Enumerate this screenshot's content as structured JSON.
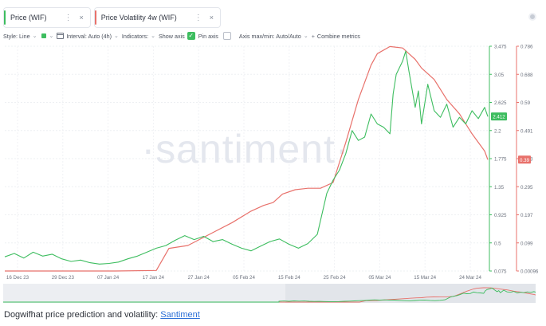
{
  "tabs": [
    {
      "label": "Price (WIF)",
      "accent": "#3dbd5f",
      "dots": "⋮",
      "close": "×"
    },
    {
      "label": "Price Volatility 4w (WIF)",
      "accent": "#e8716b",
      "dots": "⋮",
      "close": "×"
    }
  ],
  "toolbar": {
    "style": "Style: Line",
    "interval": "Interval: Auto (4h)",
    "indicators": "Indicators:",
    "show_axis": "Show axis",
    "pin_axis": "Pin axis",
    "axis_maxmin": "Axis max/min: Auto/Auto",
    "combine": "Combine metrics",
    "check": "✓"
  },
  "watermark": "·santiment·",
  "caption": {
    "text": "Dogwifhat price prediction and volatility: ",
    "link": "Santiment"
  },
  "chart_data": {
    "type": "line",
    "x_ticks": [
      "16 Dec 23",
      "29 Dec 23",
      "07 Jan 24",
      "17 Jan 24",
      "27 Jan 24",
      "05 Feb 24",
      "15 Feb 24",
      "25 Feb 24",
      "05 Mar 24",
      "15 Mar 24",
      "24 Mar 24"
    ],
    "price_axis_ticks": [
      "3.475",
      "3.05",
      "2.625",
      "2.2",
      "1.775",
      "1.35",
      "0.925",
      "0.5",
      "0.075"
    ],
    "volatility_axis_ticks": [
      "0.786",
      "0.688",
      "0.59",
      "0.491",
      "0.393",
      "0.295",
      "0.197",
      "0.099",
      "0.00096"
    ],
    "price_ylim": [
      0.075,
      3.475
    ],
    "volatility_ylim": [
      0.00096,
      0.786
    ],
    "price_last_label": "2.412",
    "volatility_last_label": "0.39",
    "series": [
      {
        "name": "Price (WIF)",
        "color": "#3dbd5f",
        "points": [
          [
            0,
            0.29
          ],
          [
            3,
            0.34
          ],
          [
            6,
            0.27
          ],
          [
            9,
            0.36
          ],
          [
            12,
            0.3
          ],
          [
            15,
            0.33
          ],
          [
            18,
            0.26
          ],
          [
            21,
            0.22
          ],
          [
            24,
            0.24
          ],
          [
            27,
            0.2
          ],
          [
            30,
            0.18
          ],
          [
            33,
            0.19
          ],
          [
            36,
            0.21
          ],
          [
            39,
            0.26
          ],
          [
            42,
            0.3
          ],
          [
            45,
            0.36
          ],
          [
            48,
            0.42
          ],
          [
            51,
            0.46
          ],
          [
            54,
            0.54
          ],
          [
            57,
            0.61
          ],
          [
            60,
            0.55
          ],
          [
            63,
            0.6
          ],
          [
            66,
            0.52
          ],
          [
            69,
            0.55
          ],
          [
            72,
            0.48
          ],
          [
            75,
            0.42
          ],
          [
            78,
            0.38
          ],
          [
            81,
            0.45
          ],
          [
            84,
            0.52
          ],
          [
            87,
            0.56
          ],
          [
            90,
            0.48
          ],
          [
            93,
            0.42
          ],
          [
            96,
            0.49
          ],
          [
            99,
            0.63
          ],
          [
            102,
            1.25
          ],
          [
            104,
            1.45
          ],
          [
            106,
            1.6
          ],
          [
            108,
            1.85
          ],
          [
            110,
            2.2
          ],
          [
            112,
            2.05
          ],
          [
            114,
            2.1
          ],
          [
            116,
            2.45
          ],
          [
            118,
            2.3
          ],
          [
            120,
            2.25
          ],
          [
            122,
            2.15
          ],
          [
            123,
            2.75
          ],
          [
            124,
            3.05
          ],
          [
            126,
            3.25
          ],
          [
            127,
            3.4
          ],
          [
            128,
            3.1
          ],
          [
            130,
            2.55
          ],
          [
            131,
            2.8
          ],
          [
            132,
            2.3
          ],
          [
            134,
            2.9
          ],
          [
            136,
            2.5
          ],
          [
            138,
            2.4
          ],
          [
            140,
            2.6
          ],
          [
            142,
            2.25
          ],
          [
            144,
            2.4
          ],
          [
            146,
            2.3
          ],
          [
            148,
            2.5
          ],
          [
            150,
            2.38
          ],
          [
            152,
            2.55
          ],
          [
            153,
            2.412
          ]
        ]
      },
      {
        "name": "Price Volatility 4w (WIF)",
        "color": "#e8716b",
        "points": [
          [
            0,
            0.00096
          ],
          [
            20,
            0.00096
          ],
          [
            35,
            0.001
          ],
          [
            48,
            0.003
          ],
          [
            52,
            0.08
          ],
          [
            58,
            0.09
          ],
          [
            65,
            0.13
          ],
          [
            72,
            0.17
          ],
          [
            78,
            0.21
          ],
          [
            82,
            0.23
          ],
          [
            85,
            0.24
          ],
          [
            88,
            0.27
          ],
          [
            92,
            0.285
          ],
          [
            96,
            0.29
          ],
          [
            100,
            0.29
          ],
          [
            104,
            0.31
          ],
          [
            108,
            0.45
          ],
          [
            112,
            0.6
          ],
          [
            116,
            0.72
          ],
          [
            118,
            0.76
          ],
          [
            122,
            0.785
          ],
          [
            126,
            0.78
          ],
          [
            128,
            0.76
          ],
          [
            130,
            0.74
          ],
          [
            132,
            0.71
          ],
          [
            136,
            0.67
          ],
          [
            140,
            0.6
          ],
          [
            144,
            0.55
          ],
          [
            148,
            0.48
          ],
          [
            152,
            0.42
          ],
          [
            153,
            0.39
          ]
        ]
      }
    ],
    "legend": "top-left tabs",
    "grid": true
  }
}
